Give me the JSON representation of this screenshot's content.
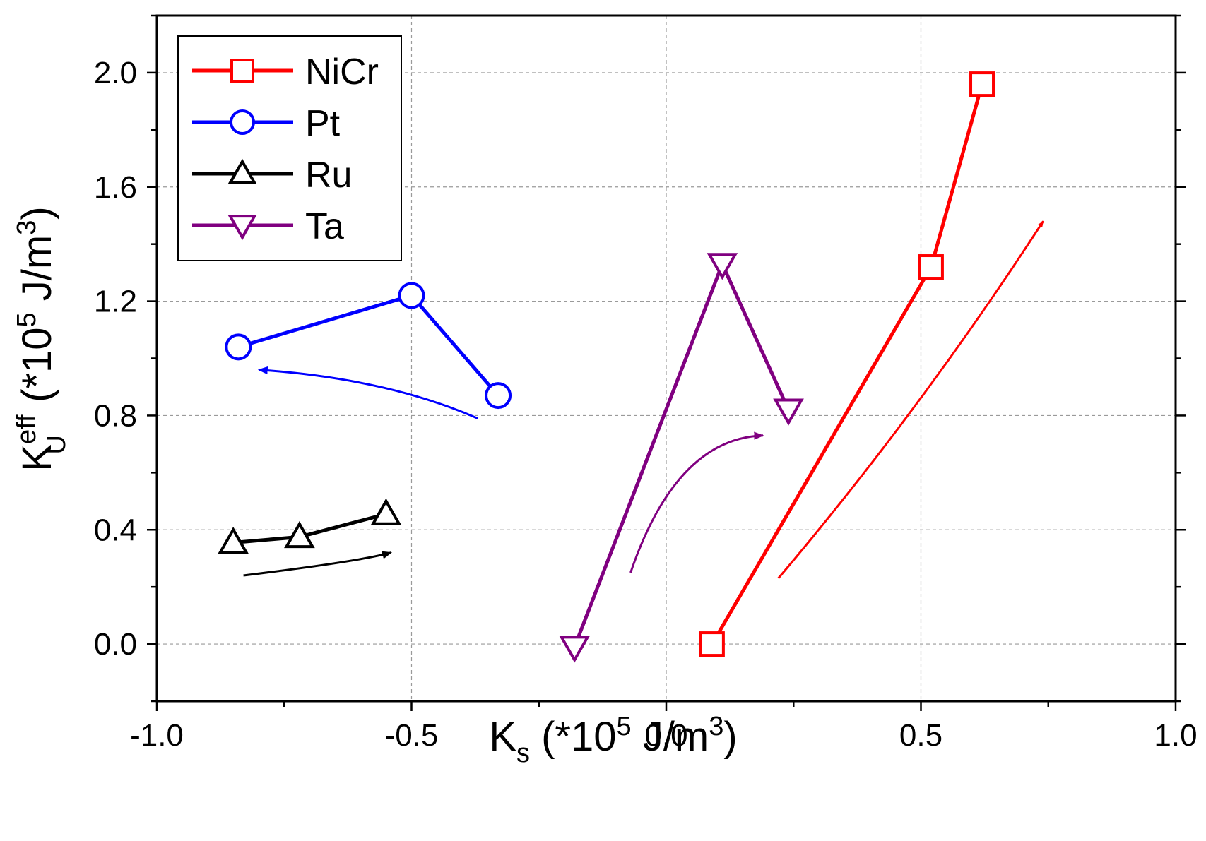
{
  "chart_data": {
    "type": "line",
    "xlabel": {
      "main": "K",
      "sub": "s",
      "rest": " (*10",
      "sup": "5",
      "rest2": " J/m",
      "sup2": "3",
      "end": ")"
    },
    "ylabel": {
      "main": "K",
      "sup": "eff",
      "sub": "U",
      "rest": " (*10",
      "sup2": "5",
      "rest2": " J/m",
      "sup3": "3",
      "end": ")"
    },
    "xlim": [
      -1.0,
      1.0
    ],
    "ylim": [
      -0.2,
      2.2
    ],
    "xticks": [
      -1.0,
      -0.5,
      0.0,
      0.5,
      1.0
    ],
    "yticks": [
      0.0,
      0.4,
      0.8,
      1.2,
      1.6,
      2.0
    ],
    "xtick_labels": [
      "-1.0",
      "-0.5",
      "0.0",
      "0.5",
      "1.0"
    ],
    "ytick_labels": [
      "0.0",
      "0.4",
      "0.8",
      "1.2",
      "1.6",
      "2.0"
    ],
    "grid": true,
    "legend_position": "top-left",
    "series": [
      {
        "name": "NiCr",
        "color": "#ff0000",
        "marker": "square",
        "x": [
          0.09,
          0.52,
          0.62
        ],
        "y": [
          0.0,
          1.32,
          1.96
        ]
      },
      {
        "name": "Pt",
        "color": "#0000ff",
        "marker": "circle",
        "x": [
          -0.84,
          -0.5,
          -0.33
        ],
        "y": [
          1.04,
          1.22,
          0.87
        ]
      },
      {
        "name": "Ru",
        "color": "#000000",
        "marker": "triangle-up",
        "x": [
          -0.85,
          -0.72,
          -0.55
        ],
        "y": [
          0.355,
          0.375,
          0.455
        ]
      },
      {
        "name": "Ta",
        "color": "#800080",
        "marker": "triangle-down",
        "x": [
          -0.18,
          0.11,
          0.24
        ],
        "y": [
          -0.01,
          1.33,
          0.82
        ]
      }
    ],
    "annotations": [
      {
        "type": "arrow",
        "color": "#ff0000",
        "points": [
          [
            0.22,
            0.23
          ],
          [
            0.5,
            0.82
          ],
          [
            0.74,
            1.48
          ]
        ]
      },
      {
        "type": "arrow",
        "color": "#0000ff",
        "points": [
          [
            -0.37,
            0.79
          ],
          [
            -0.55,
            0.93
          ],
          [
            -0.8,
            0.96
          ]
        ]
      },
      {
        "type": "arrow",
        "color": "#000000",
        "points": [
          [
            -0.83,
            0.24
          ],
          [
            -0.6,
            0.29
          ],
          [
            -0.54,
            0.32
          ]
        ]
      },
      {
        "type": "arrow",
        "color": "#800080",
        "points": [
          [
            -0.07,
            0.25
          ],
          [
            0.02,
            0.72
          ],
          [
            0.19,
            0.73
          ]
        ]
      }
    ]
  }
}
